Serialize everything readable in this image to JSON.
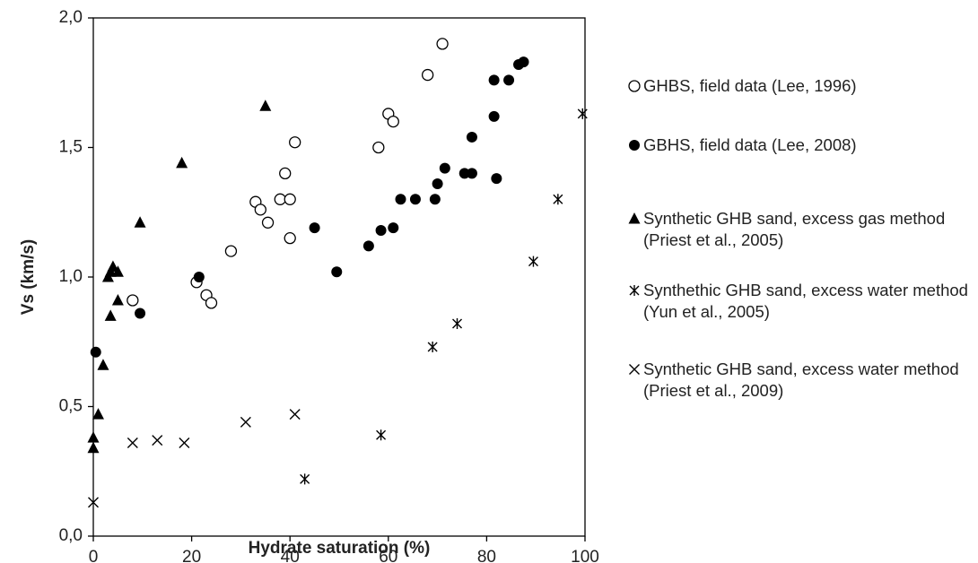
{
  "chart_data": {
    "type": "scatter",
    "xlabel": "Hydrate saturation (%)",
    "ylabel": "Vs (km/s)",
    "xlim": [
      0,
      100
    ],
    "xticks": [
      0,
      20,
      40,
      60,
      80,
      100
    ],
    "ylim": [
      0,
      2
    ],
    "yticks": [
      {
        "value": 0,
        "label": "0,0"
      },
      {
        "value": 0.5,
        "label": "0,5"
      },
      {
        "value": 1,
        "label": "1,0"
      },
      {
        "value": 1.5,
        "label": "1,5"
      },
      {
        "value": 2,
        "label": "2,0"
      }
    ],
    "series": [
      {
        "name": "GHBS, field data (Lee, 1996)",
        "color": "#000000",
        "marker": "open-circle",
        "x": [
          8,
          21,
          23,
          24,
          28,
          33,
          34,
          35.5,
          38,
          39,
          40,
          40,
          41,
          58,
          60,
          61,
          68,
          71
        ],
        "values": [
          0.91,
          0.98,
          0.93,
          0.9,
          1.1,
          1.29,
          1.26,
          1.21,
          1.3,
          1.4,
          1.3,
          1.15,
          1.52,
          1.5,
          1.63,
          1.6,
          1.78,
          1.9
        ]
      },
      {
        "name": "GBHS, field data (Lee, 2008)",
        "color": "#000000",
        "marker": "filled-circle",
        "x": [
          0.5,
          9.5,
          21.5,
          45,
          49.5,
          56,
          58.5,
          61,
          62.5,
          65.5,
          69.5,
          70,
          71.5,
          75.5,
          77,
          77,
          81.5,
          82,
          81.5,
          84.5,
          86.5,
          87.5
        ],
        "values": [
          0.71,
          0.86,
          1.0,
          1.19,
          1.02,
          1.12,
          1.18,
          1.19,
          1.3,
          1.3,
          1.3,
          1.36,
          1.42,
          1.4,
          1.4,
          1.54,
          1.62,
          1.38,
          1.76,
          1.76,
          1.82,
          1.83
        ]
      },
      {
        "name": "Synthetic GHB sand, excess gas method (Priest et al., 2005)",
        "color": "#000000",
        "marker": "triangle",
        "x": [
          0,
          0,
          1,
          2,
          3.5,
          3,
          3.5,
          4,
          5,
          5,
          9.5,
          18,
          35
        ],
        "values": [
          0.34,
          0.38,
          0.47,
          0.66,
          0.85,
          1.0,
          1.02,
          1.04,
          0.91,
          1.02,
          1.21,
          1.44,
          1.66
        ]
      },
      {
        "name": "Synthethic GHB sand, excess water method (Yun et al., 2005)",
        "color": "#000000",
        "marker": "asterisk",
        "x": [
          43,
          58.5,
          69,
          74,
          89.5,
          94.5,
          99.5
        ],
        "values": [
          0.22,
          0.39,
          0.73,
          0.82,
          1.06,
          1.3,
          1.63
        ]
      },
      {
        "name": "Synthetic GHB sand, excess water method (Priest et al., 2009)",
        "color": "#000000",
        "marker": "cross",
        "x": [
          0,
          8,
          13,
          18.5,
          31,
          41
        ],
        "values": [
          0.13,
          0.36,
          0.37,
          0.36,
          0.44,
          0.47
        ]
      }
    ]
  }
}
